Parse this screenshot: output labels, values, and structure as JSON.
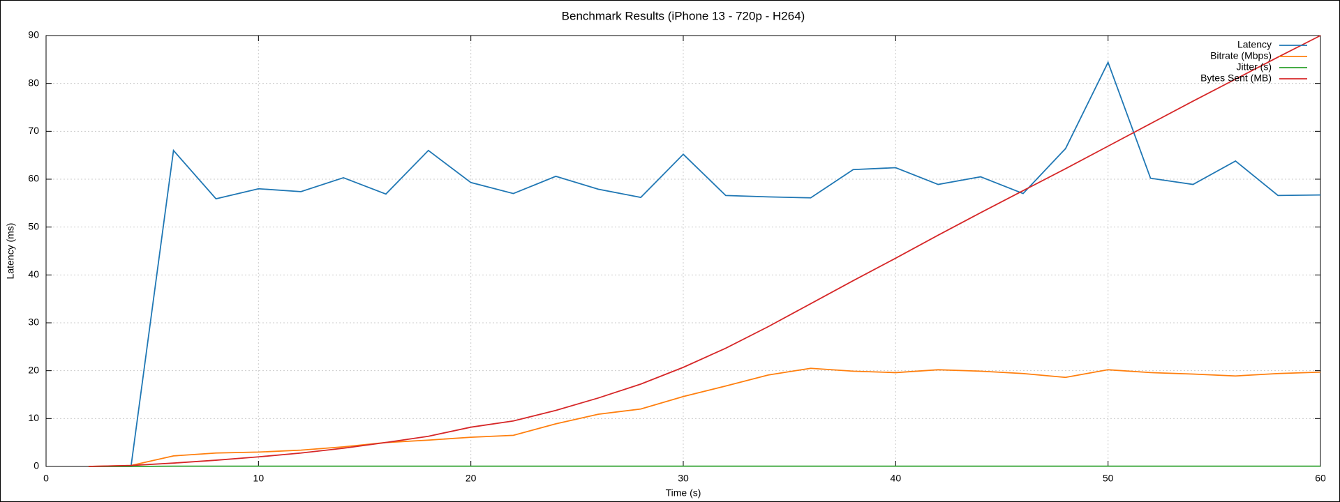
{
  "chart_data": {
    "type": "line",
    "title": "Benchmark Results (iPhone 13 - 720p - H264)",
    "x_label": "Time (s)",
    "y_label": "Latency (ms)",
    "x": [
      2,
      4,
      6,
      8,
      10,
      12,
      14,
      16,
      18,
      20,
      22,
      24,
      26,
      28,
      30,
      32,
      34,
      36,
      38,
      40,
      42,
      44,
      46,
      48,
      50,
      52,
      54,
      56,
      58,
      60
    ],
    "series": [
      {
        "name": "Latency",
        "color": "#1f77b4",
        "values": [
          0,
          0,
          66,
          55.9,
          58,
          57.4,
          60.3,
          56.9,
          66,
          59.3,
          57,
          60.6,
          57.9,
          56.2,
          65.2,
          56.6,
          56.3,
          56.1,
          62,
          62.4,
          58.9,
          60.5,
          57,
          66.4,
          84.4,
          60.2,
          58.9,
          63.8,
          56.6,
          56.7
        ]
      },
      {
        "name": "Bitrate (Mbps)",
        "color": "#ff7f0e",
        "values": [
          0,
          0.2,
          2.2,
          2.8,
          3,
          3.4,
          4.1,
          5,
          5.5,
          6.1,
          6.5,
          8.9,
          10.9,
          12,
          14.6,
          16.8,
          19.1,
          20.5,
          19.9,
          19.6,
          20.2,
          19.9,
          19.4,
          18.6,
          20.2,
          19.6,
          19.3,
          18.9,
          19.4,
          19.7
        ]
      },
      {
        "name": "Jitter (s)",
        "color": "#2ca02c",
        "values": [
          0,
          0,
          0.05,
          0.05,
          0.05,
          0.05,
          0.05,
          0.05,
          0.05,
          0.05,
          0.05,
          0.05,
          0.05,
          0.05,
          0.05,
          0.05,
          0.05,
          0.05,
          0.05,
          0.05,
          0.05,
          0.05,
          0.05,
          0.05,
          0.05,
          0.05,
          0.05,
          0.05,
          0.05,
          0.05
        ]
      },
      {
        "name": "Bytes Sent (MB)",
        "color": "#d62728",
        "values": [
          0,
          0.2,
          0.7,
          1.3,
          2,
          2.8,
          3.8,
          5,
          6.3,
          8.2,
          9.5,
          11.7,
          14.3,
          17.2,
          20.7,
          24.7,
          29.2,
          34,
          38.8,
          43.5,
          48.3,
          53,
          57.6,
          62.2,
          66.9,
          71.6,
          76.3,
          80.9,
          85.5,
          90
        ]
      }
    ],
    "xlim": [
      0,
      60
    ],
    "xticks": [
      0,
      10,
      20,
      30,
      40,
      50,
      60
    ],
    "ylim": [
      0,
      90
    ],
    "yticks": [
      0,
      10,
      20,
      30,
      40,
      50,
      60,
      70,
      80,
      90
    ],
    "grid": true,
    "legend": "top-right"
  }
}
